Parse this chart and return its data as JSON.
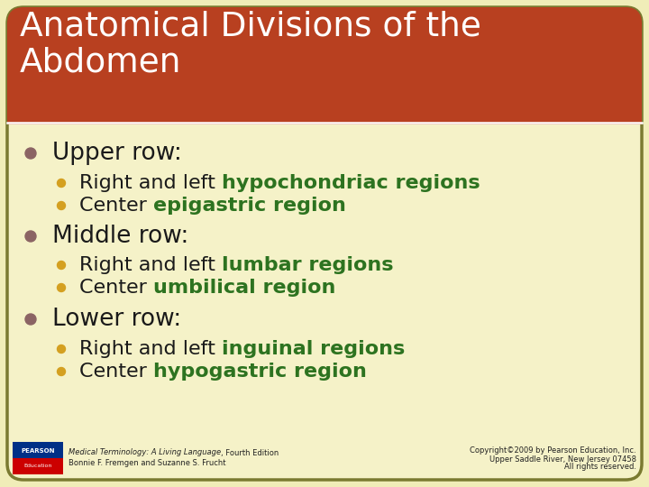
{
  "title_line1": "Anatomical Divisions of the",
  "title_line2": "Abdomen",
  "title_color": "#FFFFFF",
  "title_bg_color": "#B84020",
  "bg_color": "#F0EDB8",
  "card_bg_color": "#F5F2C8",
  "card_border_color": "#7A7A30",
  "bullet_color_main": "#8B6464",
  "bullet_color_sub": "#D4A020",
  "green_color": "#2D7320",
  "black_color": "#1A1A1A",
  "footer_left_line1_italic": "Medical Terminology: A Living Language",
  "footer_left_line1_normal": ", Fourth Edition",
  "footer_left_line2": "Bonnie F. Fremgen and Suzanne S. Frucht",
  "footer_right1": "Copyright©2009 by Pearson Education, Inc.",
  "footer_right2": "Upper Saddle River, New Jersey 07458",
  "footer_right3": "All rights reserved.",
  "content": [
    {
      "level": 1,
      "parts": [
        [
          "Upper row:",
          "#1A1A1A",
          false
        ]
      ]
    },
    {
      "level": 2,
      "parts": [
        [
          "Right and left ",
          "#1A1A1A",
          false
        ],
        [
          "hypochondriac regions",
          "#2D7320",
          true
        ]
      ]
    },
    {
      "level": 2,
      "parts": [
        [
          "Center ",
          "#1A1A1A",
          false
        ],
        [
          "epigastric region",
          "#2D7320",
          true
        ]
      ]
    },
    {
      "level": 1,
      "parts": [
        [
          "Middle row:",
          "#1A1A1A",
          false
        ]
      ]
    },
    {
      "level": 2,
      "parts": [
        [
          "Right and left ",
          "#1A1A1A",
          false
        ],
        [
          "lumbar regions",
          "#2D7320",
          true
        ]
      ]
    },
    {
      "level": 2,
      "parts": [
        [
          "Center ",
          "#1A1A1A",
          false
        ],
        [
          "umbilical region",
          "#2D7320",
          true
        ]
      ]
    },
    {
      "level": 1,
      "parts": [
        [
          "Lower row:",
          "#1A1A1A",
          false
        ]
      ]
    },
    {
      "level": 2,
      "parts": [
        [
          "Right and left ",
          "#1A1A1A",
          false
        ],
        [
          "inguinal regions",
          "#2D7320",
          true
        ]
      ]
    },
    {
      "level": 2,
      "parts": [
        [
          "Center ",
          "#1A1A1A",
          false
        ],
        [
          "hypogastric region",
          "#2D7320",
          true
        ]
      ]
    }
  ]
}
